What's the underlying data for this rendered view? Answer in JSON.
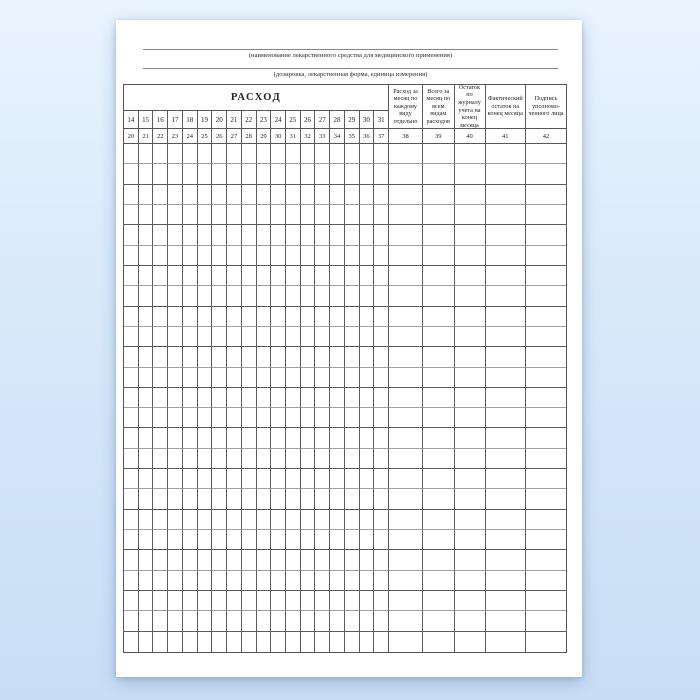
{
  "document": {
    "field_lines": [
      {
        "value": "",
        "caption": "(наименование лекарственного средства для медицинского применения)"
      },
      {
        "value": "",
        "caption": "(дозировка, лекарственная форма, единица измерения)"
      }
    ],
    "table": {
      "consumption_header": "РАСХОД",
      "day_columns": [
        "14",
        "15",
        "16",
        "17",
        "18",
        "19",
        "20",
        "21",
        "22",
        "23",
        "24",
        "25",
        "26",
        "27",
        "28",
        "29",
        "30",
        "31"
      ],
      "day_column_numbers": [
        "20",
        "21",
        "22",
        "23",
        "24",
        "25",
        "26",
        "27",
        "28",
        "29",
        "30",
        "31",
        "32",
        "33",
        "34",
        "35",
        "36",
        "37"
      ],
      "summary_columns": [
        {
          "label": "Расход за месяц по каждому виду отдельно",
          "number": "38"
        },
        {
          "label": "Всего за месяц по всем видам расходов",
          "number": "39"
        },
        {
          "label": "Остаток по журналу учета на конец месяца",
          "number": "40"
        },
        {
          "label": "Фактический остаток на конец месяца",
          "number": "41"
        },
        {
          "label": "Подпись уполномо­ченного лица",
          "number": "42"
        }
      ],
      "empty_body_rows": 25,
      "body_cells_content": ""
    },
    "colors": {
      "background_top": "#eaf4fe",
      "background_bottom": "#c9def5",
      "paper": "#ffffff",
      "grid_line_dark": "#5a5a60",
      "grid_line_light": "#9aa1ab",
      "text": "#232328"
    }
  }
}
